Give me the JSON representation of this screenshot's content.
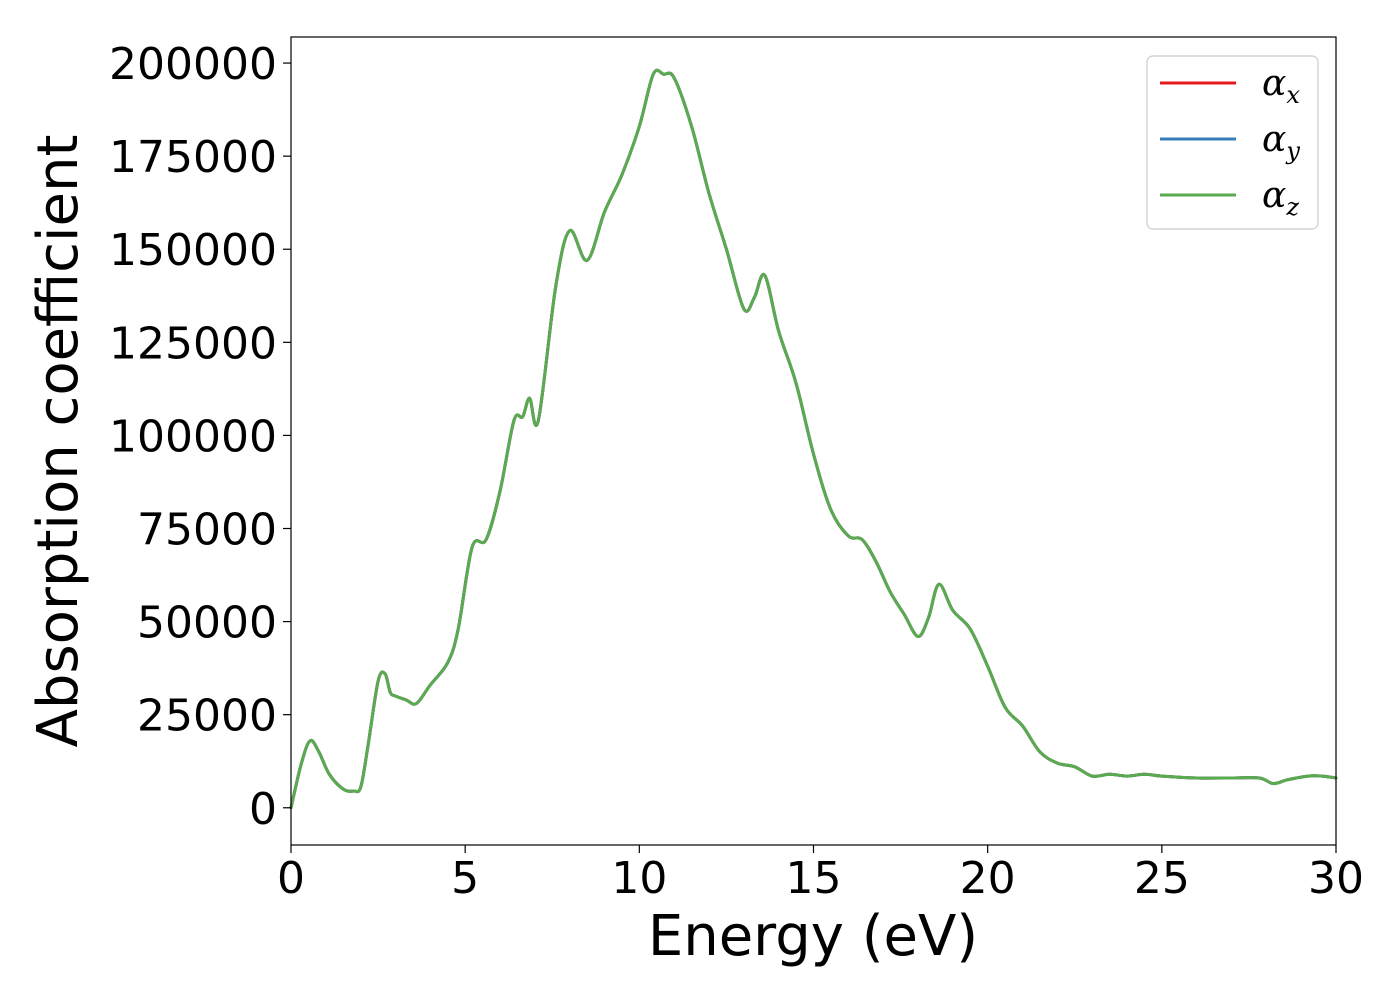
{
  "chart_data": {
    "type": "line",
    "xlabel": "Energy (eV)",
    "ylabel": "Absorption coefficient",
    "xlim": [
      0,
      30
    ],
    "ylim": [
      -10000,
      207000
    ],
    "xticks": [
      0,
      5,
      10,
      15,
      20,
      25,
      30
    ],
    "xtick_labels": [
      "0",
      "5",
      "10",
      "15",
      "20",
      "25",
      "30"
    ],
    "yticks": [
      0,
      25000,
      50000,
      75000,
      100000,
      125000,
      150000,
      175000,
      200000
    ],
    "ytick_labels": [
      "0",
      "25000",
      "50000",
      "75000",
      "100000",
      "125000",
      "150000",
      "175000",
      "200000"
    ],
    "grid": false,
    "legend_position": "top-right",
    "x": [
      0,
      0.3,
      0.55,
      0.8,
      1.1,
      1.5,
      1.8,
      2.0,
      2.2,
      2.5,
      2.7,
      2.85,
      3.0,
      3.3,
      3.6,
      4.0,
      4.5,
      4.8,
      5.2,
      5.6,
      6.0,
      6.4,
      6.65,
      6.85,
      7.1,
      7.6,
      8.0,
      8.5,
      9.0,
      9.5,
      10.0,
      10.4,
      10.7,
      11.0,
      11.5,
      12.0,
      12.5,
      13.0,
      13.3,
      13.6,
      14.0,
      14.5,
      15.0,
      15.5,
      16.0,
      16.4,
      16.8,
      17.2,
      17.6,
      18.0,
      18.3,
      18.6,
      19.0,
      19.5,
      20.0,
      20.5,
      21.0,
      21.5,
      22.0,
      22.5,
      23.0,
      23.5,
      24.0,
      24.5,
      25.0,
      26.0,
      27.0,
      27.8,
      28.2,
      28.6,
      29.2,
      29.6,
      30.0
    ],
    "series": [
      {
        "name": "α_x",
        "color": "#e41a1c",
        "values": [
          0,
          12000,
          18000,
          15000,
          9000,
          5000,
          4500,
          5500,
          16000,
          34000,
          36000,
          31000,
          30000,
          29000,
          28000,
          33000,
          39000,
          48000,
          70000,
          72000,
          85000,
          104000,
          105000,
          110000,
          104000,
          140000,
          155000,
          147000,
          160000,
          170000,
          183000,
          197000,
          197000,
          196000,
          183000,
          165000,
          150000,
          134000,
          137000,
          143000,
          128000,
          114000,
          95000,
          80000,
          73000,
          72000,
          66000,
          58000,
          52000,
          46000,
          51000,
          60000,
          53000,
          48000,
          38000,
          27000,
          22000,
          15000,
          12000,
          11000,
          8500,
          9000,
          8500,
          9000,
          8500,
          8000,
          8000,
          8000,
          6500,
          7500,
          8500,
          8500,
          8000
        ]
      },
      {
        "name": "α_y",
        "color": "#377eb8",
        "values": [
          0,
          12000,
          18000,
          15000,
          9000,
          5000,
          4500,
          5500,
          16000,
          34000,
          36000,
          31000,
          30000,
          29000,
          28000,
          33000,
          39000,
          48000,
          70000,
          72000,
          85000,
          104000,
          105000,
          110000,
          104000,
          140000,
          155000,
          147000,
          160000,
          170000,
          183000,
          197000,
          197000,
          196000,
          183000,
          165000,
          150000,
          134000,
          137000,
          143000,
          128000,
          114000,
          95000,
          80000,
          73000,
          72000,
          66000,
          58000,
          52000,
          46000,
          51000,
          60000,
          53000,
          48000,
          38000,
          27000,
          22000,
          15000,
          12000,
          11000,
          8500,
          9000,
          8500,
          9000,
          8500,
          8000,
          8000,
          8000,
          6500,
          7500,
          8500,
          8500,
          8000
        ]
      },
      {
        "name": "α_z",
        "color": "#5aaa50",
        "values": [
          0,
          12000,
          18000,
          15000,
          9000,
          5000,
          4500,
          5500,
          16000,
          34000,
          36000,
          31000,
          30000,
          29000,
          28000,
          33000,
          39000,
          48000,
          70000,
          72000,
          85000,
          104000,
          105000,
          110000,
          104000,
          140000,
          155000,
          147000,
          160000,
          170000,
          183000,
          197000,
          197000,
          196000,
          183000,
          165000,
          150000,
          134000,
          137000,
          143000,
          128000,
          114000,
          95000,
          80000,
          73000,
          72000,
          66000,
          58000,
          52000,
          46000,
          51000,
          60000,
          53000,
          48000,
          38000,
          27000,
          22000,
          15000,
          12000,
          11000,
          8500,
          9000,
          8500,
          9000,
          8500,
          8000,
          8000,
          8000,
          6500,
          7500,
          8500,
          8500,
          8000
        ]
      }
    ],
    "legend": [
      {
        "base": "α",
        "sub": "x",
        "color": "#e41a1c"
      },
      {
        "base": "α",
        "sub": "y",
        "color": "#377eb8"
      },
      {
        "base": "α",
        "sub": "z",
        "color": "#5aaa50"
      }
    ]
  }
}
